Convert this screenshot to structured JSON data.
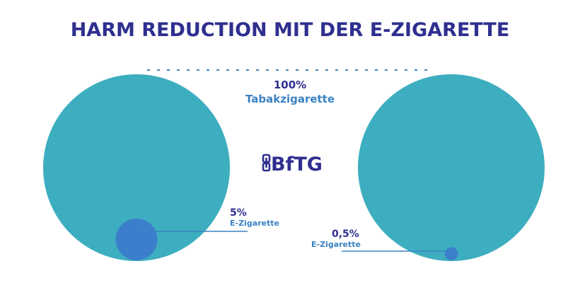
{
  "title": "HARM REDUCTION MIT DER E-ZIGARETTE",
  "logo": {
    "text": "BfTG",
    "icon": "bftg-logo-icon"
  },
  "colors": {
    "big_circle": "#3daebf",
    "small_circle": "#3b7fcc",
    "title": "#2e2f8f",
    "percent": "#2e2f8f",
    "label": "#3a82c4",
    "dashed_line": "#3a82c4",
    "leader_line": "#3a82c4"
  },
  "chart_data": [
    {
      "type": "bubble",
      "items": [
        {
          "name": "Tabakzigarette",
          "percent_label": "100%",
          "value": 100
        },
        {
          "name": "E-Zigarette",
          "percent_label": "5%",
          "value": 5
        }
      ]
    },
    {
      "type": "bubble",
      "items": [
        {
          "name": "Tabakzigarette",
          "percent_label": "100%",
          "value": 100
        },
        {
          "name": "E-Zigarette",
          "percent_label": "0,5%",
          "value": 0.5
        }
      ]
    }
  ],
  "reference": {
    "percent_label": "100%",
    "label": "Tabakzigarette"
  }
}
